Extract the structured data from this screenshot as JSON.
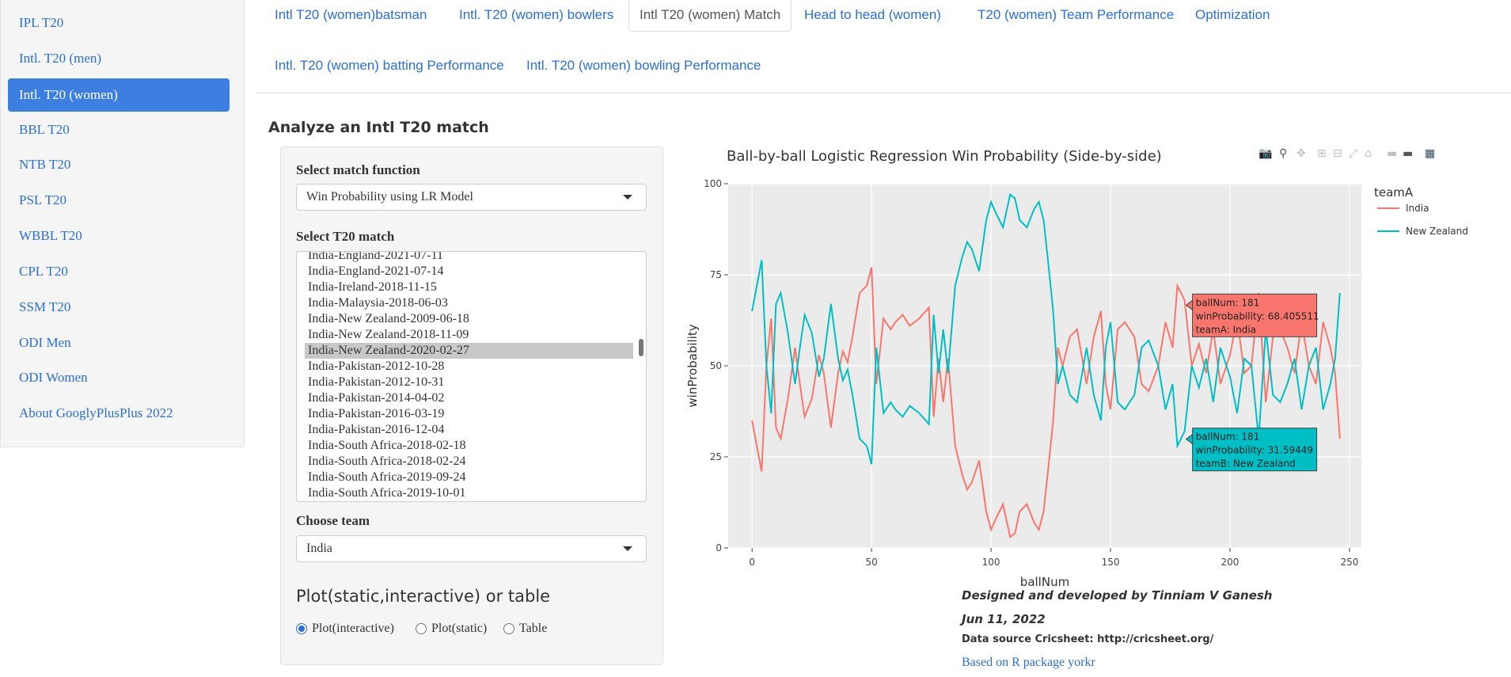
{
  "sidebar": {
    "items": [
      {
        "label": "IPL T20"
      },
      {
        "label": "Intl. T20 (men)"
      },
      {
        "label": "Intl. T20 (women)",
        "active": true
      },
      {
        "label": "BBL T20"
      },
      {
        "label": "NTB T20"
      },
      {
        "label": "PSL T20"
      },
      {
        "label": "WBBL T20"
      },
      {
        "label": "CPL T20"
      },
      {
        "label": "SSM T20"
      },
      {
        "label": "ODI Men"
      },
      {
        "label": "ODI Women"
      },
      {
        "label": "About GooglyPlusPlus 2022"
      }
    ]
  },
  "tabs": [
    {
      "label": "Intl T20 (women)batsman"
    },
    {
      "label": "Intl. T20 (women) bowlers"
    },
    {
      "label": "Intl T20 (women) Match",
      "active": true
    },
    {
      "label": "Head to head (women)"
    },
    {
      "label": "T20 (women) Team Performance"
    },
    {
      "label": "Optimization"
    },
    {
      "label": "Intl. T20 (women) batting Performance"
    },
    {
      "label": "Intl. T20 (women) bowling Performance"
    }
  ],
  "main": {
    "heading": "Analyze an Intl T20 match",
    "match_function": {
      "label": "Select match function",
      "value": "Win Probability using LR Model"
    },
    "match_select": {
      "label": "Select T20 match",
      "options": [
        "India-England-2021-07-11",
        "India-England-2021-07-14",
        "India-Ireland-2018-11-15",
        "India-Malaysia-2018-06-03",
        "India-New Zealand-2009-06-18",
        "India-New Zealand-2018-11-09",
        "India-New Zealand-2020-02-27",
        "India-Pakistan-2012-10-28",
        "India-Pakistan-2012-10-31",
        "India-Pakistan-2014-04-02",
        "India-Pakistan-2016-03-19",
        "India-Pakistan-2016-12-04",
        "India-South Africa-2018-02-18",
        "India-South Africa-2018-02-24",
        "India-South Africa-2019-09-24",
        "India-South Africa-2019-10-01"
      ],
      "selected": "India-New Zealand-2020-02-27"
    },
    "team_select": {
      "label": "Choose team",
      "value": "India"
    },
    "plot_type": {
      "title": "Plot(static,interactive) or table",
      "options": [
        "Plot(interactive)",
        "Plot(static)",
        "Table"
      ],
      "selected": "Plot(interactive)"
    }
  },
  "modebar_icons": [
    "camera-icon",
    "zoom-icon",
    "pan-icon",
    "zoom-in-icon",
    "zoom-out-icon",
    "autoscale-icon",
    "reset-axes-icon",
    "spike-lines-icon",
    "hover-closest-icon",
    "hover-compare-icon",
    "plotly-logo-icon"
  ],
  "chart_data": {
    "type": "line",
    "title": "Ball-by-ball Logistic Regression Win Probability (Side-by-side)",
    "xlabel": "ballNum",
    "ylabel": "winProbability",
    "xlim": [
      -10,
      255
    ],
    "ylim": [
      0,
      100
    ],
    "xticks": [
      0,
      50,
      100,
      150,
      200,
      250
    ],
    "yticks": [
      0,
      25,
      50,
      75,
      100
    ],
    "grid": true,
    "legend": {
      "title": "teamA",
      "placement": "right"
    },
    "series": [
      {
        "name": "India",
        "color": "#F8766D",
        "x": [
          0,
          2,
          4,
          6,
          8,
          10,
          12,
          15,
          18,
          20,
          22,
          25,
          28,
          30,
          33,
          36,
          38,
          40,
          42,
          45,
          48,
          50,
          52,
          55,
          58,
          60,
          63,
          66,
          70,
          74,
          76,
          78,
          80,
          82,
          85,
          88,
          90,
          92,
          95,
          98,
          100,
          102,
          105,
          108,
          110,
          112,
          115,
          118,
          120,
          122,
          124,
          126,
          128,
          130,
          133,
          136,
          140,
          143,
          146,
          148,
          150,
          153,
          156,
          160,
          163,
          166,
          170,
          173,
          176,
          178,
          181,
          184,
          187,
          190,
          193,
          196,
          200,
          203,
          206,
          209,
          212,
          215,
          218,
          221,
          224,
          227,
          230,
          233,
          236,
          239,
          242,
          244,
          246
        ],
        "y": [
          35,
          28,
          21,
          50,
          63,
          33,
          30,
          41,
          55,
          45,
          36,
          41,
          53,
          48,
          33,
          48,
          54,
          51,
          58,
          70,
          72,
          77,
          45,
          63,
          60,
          62,
          64,
          61,
          63,
          66,
          36,
          52,
          40,
          52,
          28,
          20,
          16,
          18,
          24,
          10,
          5,
          8,
          12,
          3,
          4,
          10,
          12,
          7,
          5,
          10,
          22,
          35,
          55,
          50,
          58,
          60,
          45,
          58,
          65,
          45,
          38,
          60,
          62,
          58,
          45,
          43,
          50,
          62,
          55,
          72,
          68,
          50,
          56,
          48,
          60,
          45,
          53,
          63,
          48,
          50,
          70,
          40,
          58,
          60,
          55,
          48,
          62,
          50,
          45,
          62,
          55,
          48,
          30
        ]
      },
      {
        "name": "New Zealand",
        "color": "#00BFC4",
        "x": [
          0,
          2,
          4,
          6,
          8,
          10,
          12,
          15,
          18,
          20,
          22,
          25,
          28,
          30,
          33,
          36,
          38,
          40,
          42,
          45,
          48,
          50,
          52,
          55,
          58,
          60,
          63,
          66,
          70,
          74,
          76,
          78,
          80,
          82,
          85,
          88,
          90,
          92,
          95,
          98,
          100,
          102,
          105,
          108,
          110,
          112,
          115,
          118,
          120,
          122,
          124,
          126,
          128,
          130,
          133,
          136,
          140,
          143,
          146,
          148,
          150,
          153,
          156,
          160,
          163,
          166,
          170,
          173,
          176,
          178,
          181,
          184,
          187,
          190,
          193,
          196,
          200,
          203,
          206,
          209,
          212,
          215,
          218,
          221,
          224,
          227,
          230,
          233,
          236,
          239,
          242,
          244,
          246
        ],
        "y": [
          65,
          72,
          79,
          50,
          37,
          67,
          70,
          59,
          45,
          55,
          64,
          59,
          47,
          52,
          67,
          52,
          46,
          49,
          42,
          30,
          28,
          23,
          55,
          37,
          40,
          38,
          36,
          39,
          37,
          34,
          64,
          48,
          60,
          48,
          72,
          80,
          84,
          82,
          76,
          90,
          95,
          92,
          88,
          97,
          96,
          90,
          88,
          93,
          95,
          90,
          78,
          65,
          45,
          50,
          42,
          40,
          55,
          42,
          35,
          55,
          62,
          40,
          38,
          42,
          55,
          57,
          50,
          38,
          45,
          28,
          32,
          50,
          44,
          52,
          40,
          55,
          47,
          37,
          52,
          50,
          30,
          60,
          42,
          40,
          45,
          52,
          38,
          50,
          55,
          38,
          45,
          52,
          70
        ]
      }
    ],
    "tooltips": [
      {
        "lines": [
          "ballNum: 181",
          "winProbability: 68.405511",
          "teamA: India"
        ],
        "x": 181,
        "y": 68.405511,
        "color": "#F8766D"
      },
      {
        "lines": [
          "ballNum: 181",
          "winProbability: 31.59449",
          "teamB: New Zealand"
        ],
        "x": 181,
        "y": 31.59449,
        "color": "#00BFC4"
      }
    ]
  },
  "footer": {
    "designer": "Designed and developed by Tinniam V Ganesh",
    "date": "Jun 11, 2022",
    "source": "Data source Cricsheet: http://cricsheet.org/",
    "link": "Based on R package yorkr"
  }
}
